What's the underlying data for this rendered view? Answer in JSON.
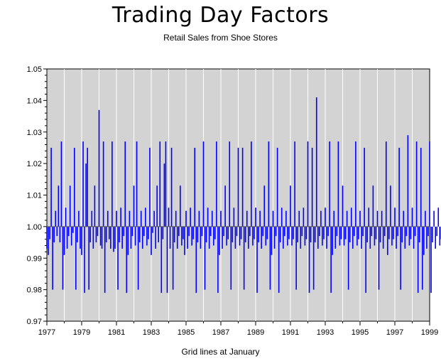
{
  "chart_data": {
    "type": "needle",
    "title": "Trading Day Factors",
    "subtitle": "Retail Sales from Shoe Stores",
    "xlabel": "Grid lines at January",
    "ylabel": "",
    "baseline": 1.0,
    "xlim": [
      1977,
      1999
    ],
    "ylim": [
      0.97,
      1.05
    ],
    "grid": "vertical at January of each year",
    "yticks": [
      "0.97",
      "0.98",
      "0.99",
      "1.00",
      "1.01",
      "1.02",
      "1.03",
      "1.04",
      "1.05"
    ],
    "xticks": [
      "1977",
      "1979",
      "1981",
      "1983",
      "1985",
      "1987",
      "1989",
      "1991",
      "1993",
      "1995",
      "1997",
      "1999"
    ],
    "series": [
      {
        "start": "1977-01",
        "values": [
          0.993,
          0.991,
          0.996,
          1.025,
          0.98,
          0.995,
          1.005,
          0.997,
          1.013,
          0.995,
          1.027,
          0.98,
          0.991,
          1.006,
          0.993,
          0.997,
          1.013,
          0.994,
          0.998,
          1.025,
          0.98,
          0.995,
          1.005,
          0.993,
          0.991,
          1.027,
          0.979,
          1.02,
          1.025,
          0.98,
          0.995,
          1.005,
          0.993,
          1.013,
          0.995,
          0.997,
          1.037,
          0.994,
          0.993,
          1.027,
          0.979,
          0.995,
          1.005,
          0.996,
          0.993,
          1.027,
          0.992,
          0.993,
          1.005,
          0.98,
          0.995,
          1.006,
          0.993,
          0.997,
          1.027,
          0.979,
          0.991,
          1.005,
          0.993,
          0.997,
          1.013,
          0.994,
          1.027,
          0.98,
          0.995,
          1.005,
          0.993,
          0.997,
          1.006,
          0.994,
          0.996,
          1.025,
          0.991,
          0.998,
          1.005,
          0.993,
          1.013,
          0.995,
          1.027,
          0.979,
          0.996,
          1.02,
          1.027,
          0.979,
          1.006,
          0.993,
          1.025,
          0.98,
          0.995,
          1.005,
          0.993,
          0.997,
          1.013,
          0.994,
          0.996,
          0.991,
          1.005,
          0.993,
          0.997,
          1.006,
          0.994,
          0.996,
          1.025,
          0.979,
          0.995,
          1.005,
          0.993,
          0.997,
          1.027,
          0.98,
          0.995,
          1.006,
          0.993,
          0.997,
          1.005,
          0.994,
          0.996,
          1.027,
          0.979,
          0.991,
          1.005,
          0.993,
          0.997,
          1.013,
          0.994,
          0.996,
          1.027,
          0.98,
          0.995,
          1.006,
          0.993,
          0.997,
          1.025,
          0.994,
          0.996,
          1.025,
          0.98,
          0.995,
          1.005,
          0.993,
          0.997,
          1.027,
          0.994,
          0.996,
          1.006,
          0.979,
          0.995,
          1.005,
          0.993,
          0.997,
          1.013,
          0.994,
          0.996,
          1.027,
          0.98,
          0.991,
          1.005,
          0.993,
          0.997,
          1.025,
          0.979,
          0.995,
          1.006,
          0.993,
          0.997,
          1.005,
          0.994,
          0.996,
          1.013,
          0.994,
          0.996,
          1.027,
          0.98,
          0.995,
          1.005,
          0.993,
          0.997,
          1.006,
          0.994,
          0.996,
          1.027,
          0.979,
          0.995,
          1.025,
          0.98,
          0.995,
          1.041,
          0.993,
          0.997,
          1.005,
          0.994,
          0.996,
          1.006,
          0.993,
          0.997,
          1.027,
          0.979,
          0.991,
          1.005,
          0.993,
          0.997,
          1.027,
          0.994,
          0.996,
          1.013,
          0.994,
          0.996,
          1.005,
          0.98,
          0.995,
          1.006,
          0.993,
          0.997,
          1.027,
          0.994,
          0.996,
          1.005,
          0.993,
          0.997,
          1.025,
          0.979,
          0.995,
          1.006,
          0.993,
          0.997,
          1.013,
          0.994,
          0.996,
          1.005,
          0.98,
          0.995,
          1.005,
          0.993,
          0.997,
          1.027,
          0.991,
          0.996,
          1.013,
          0.994,
          0.996,
          1.006,
          0.993,
          0.997,
          1.025,
          0.98,
          0.995,
          1.005,
          0.993,
          0.997,
          1.029,
          0.994,
          0.996,
          1.006,
          0.993,
          0.997,
          1.027,
          0.979,
          0.995,
          1.025,
          0.98,
          0.991,
          1.005,
          0.993,
          0.997,
          1.027,
          0.979,
          0.995,
          1.005,
          0.993,
          0.997,
          1.006,
          0.994,
          0.996,
          1.027,
          0.991,
          0.995
        ]
      }
    ],
    "colors": {
      "needle": "#0000ff",
      "background": "#d3d3d3",
      "grid": "#ffffff",
      "baseline": "#555555"
    }
  }
}
